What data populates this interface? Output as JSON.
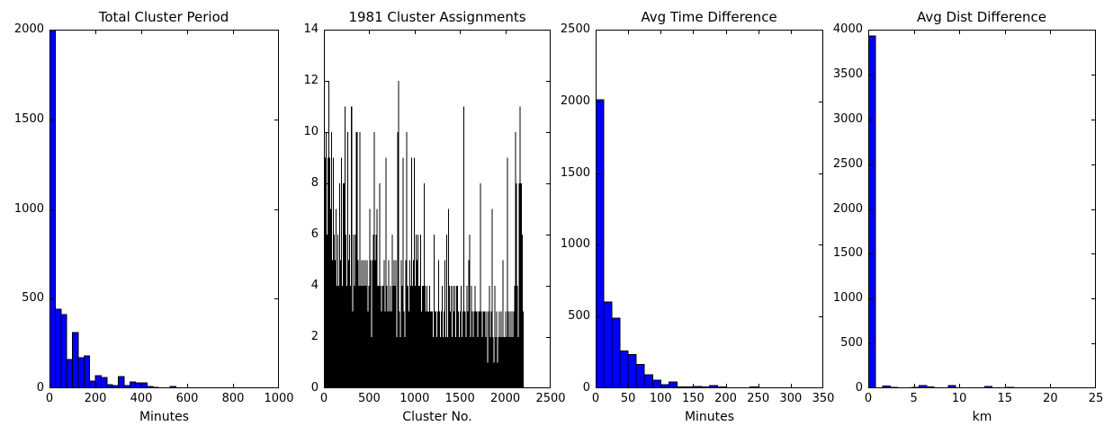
{
  "figure": {
    "background_color": "#ffffff",
    "text_color": "#000000"
  },
  "chart_data": [
    {
      "id": "total-cluster-period",
      "type": "bar",
      "title": "Total Cluster Period",
      "xlabel": "Minutes",
      "ylabel": "",
      "xlim": [
        0,
        1000
      ],
      "ylim": [
        0,
        2000
      ],
      "xticks": [
        0,
        200,
        400,
        600,
        800,
        1000
      ],
      "yticks": [
        0,
        500,
        1000,
        1500,
        2000
      ],
      "grid": false,
      "legend": null,
      "bar_color": "#0000ff",
      "bar_edge_color": "#000000",
      "bar_edge_width": 1,
      "bin_start": 0,
      "bin_width": 25,
      "values": [
        2000,
        440,
        410,
        160,
        310,
        170,
        180,
        40,
        70,
        60,
        20,
        15,
        65,
        15,
        35,
        30,
        30,
        10,
        4,
        2,
        2,
        10
      ]
    },
    {
      "id": "cluster-assignments",
      "type": "bar",
      "title": "1981 Cluster Assignments",
      "xlabel": "Cluster No.",
      "ylabel": "",
      "xlim": [
        0,
        2500
      ],
      "ylim": [
        0,
        14
      ],
      "xticks": [
        0,
        500,
        1000,
        1500,
        2000,
        2500
      ],
      "yticks": [
        0,
        2,
        4,
        6,
        8,
        10,
        12,
        14
      ],
      "grid": false,
      "legend": null,
      "bar_color": "#000000",
      "bar_edge_color": "#000000",
      "bar_edge_width": 0,
      "bin_start": 0,
      "bin_width": 10,
      "values": [
        4,
        9,
        10,
        6,
        9,
        12,
        9,
        7,
        10,
        5,
        9,
        6,
        5,
        7,
        4,
        6,
        4,
        8,
        5,
        9,
        4,
        8,
        8,
        11,
        6,
        4,
        10,
        5,
        6,
        4,
        11,
        3,
        6,
        4,
        6,
        10,
        10,
        5,
        4,
        10,
        4,
        5,
        4,
        5,
        4,
        5,
        4,
        5,
        3,
        4,
        7,
        5,
        2,
        5,
        6,
        10,
        5,
        6,
        7,
        4,
        4,
        8,
        4,
        3,
        4,
        4,
        5,
        3,
        9,
        4,
        3,
        5,
        3,
        4,
        3,
        6,
        4,
        5,
        4,
        5,
        2,
        10,
        12,
        3,
        2,
        5,
        4,
        9,
        3,
        2,
        5,
        10,
        4,
        3,
        5,
        4,
        9,
        4,
        5,
        9,
        4,
        6,
        5,
        6,
        4,
        4,
        6,
        3,
        4,
        4,
        8,
        4,
        3,
        4,
        3,
        3,
        4,
        3,
        3,
        3,
        2,
        6,
        3,
        3,
        2,
        3,
        5,
        3,
        2,
        3,
        4,
        2,
        3,
        5,
        2,
        6,
        2,
        7,
        4,
        3,
        4,
        2,
        4,
        3,
        4,
        2,
        4,
        4,
        3,
        2,
        3,
        4,
        2,
        3,
        11,
        3,
        2,
        4,
        3,
        5,
        6,
        2,
        4,
        3,
        2,
        3,
        4,
        3,
        3,
        2,
        3,
        3,
        8,
        3,
        2,
        3,
        3,
        3,
        2,
        3,
        1,
        3,
        4,
        2,
        3,
        7,
        2,
        1,
        4,
        2,
        3,
        1,
        2,
        3,
        2,
        3,
        2,
        5,
        2,
        2,
        3,
        2,
        9,
        3,
        2,
        3,
        2,
        3,
        2,
        3,
        4,
        10,
        8,
        4,
        2,
        8,
        11,
        8,
        6,
        3
      ]
    },
    {
      "id": "avg-time-difference",
      "type": "bar",
      "title": "Avg Time Difference",
      "xlabel": "Minutes",
      "ylabel": "",
      "xlim": [
        0,
        350
      ],
      "ylim": [
        0,
        2500
      ],
      "xticks": [
        0,
        50,
        100,
        150,
        200,
        250,
        300,
        350
      ],
      "yticks": [
        0,
        500,
        1000,
        1500,
        2000,
        2500
      ],
      "grid": false,
      "legend": null,
      "bar_color": "#0000ff",
      "bar_edge_color": "#000000",
      "bar_edge_width": 1,
      "bin_start": 0,
      "bin_width": 12.5,
      "values": [
        2010,
        600,
        490,
        260,
        235,
        165,
        95,
        55,
        25,
        45,
        8,
        10,
        12,
        8,
        18,
        10,
        4,
        3,
        2,
        8
      ]
    },
    {
      "id": "avg-dist-difference",
      "type": "bar",
      "title": "Avg Dist Difference",
      "xlabel": "km",
      "ylabel": "",
      "xlim": [
        0,
        25
      ],
      "ylim": [
        0,
        4000
      ],
      "xticks": [
        0,
        5,
        10,
        15,
        20,
        25
      ],
      "yticks": [
        0,
        500,
        1000,
        1500,
        2000,
        2500,
        3000,
        3500,
        4000
      ],
      "grid": false,
      "legend": null,
      "bar_color": "#0000ff",
      "bar_edge_color": "#000000",
      "bar_edge_width": 1,
      "bin_start": 0,
      "bin_width": 0.8,
      "values": [
        3930,
        0,
        25,
        8,
        3,
        0,
        8,
        28,
        15,
        3,
        5,
        28,
        5,
        3,
        0,
        5,
        22,
        3,
        0,
        8
      ]
    }
  ]
}
